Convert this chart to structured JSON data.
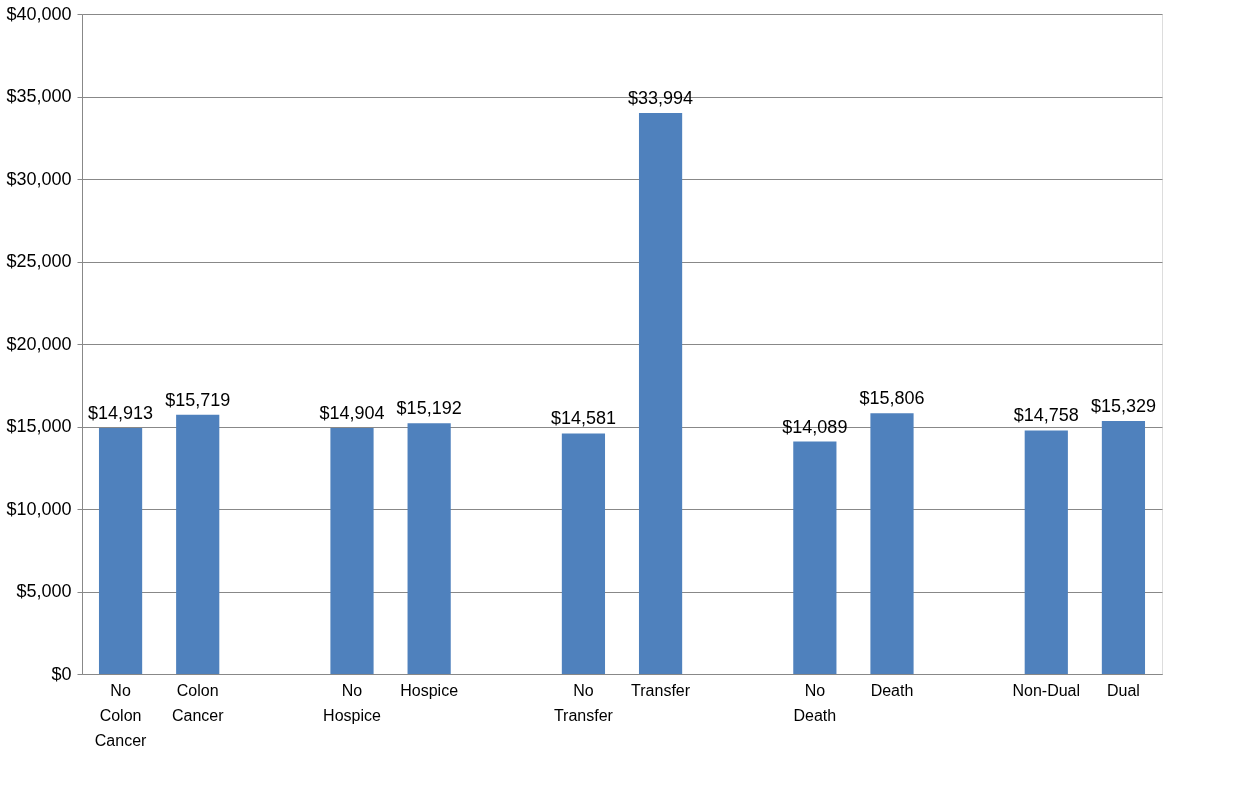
{
  "chart_data": {
    "type": "bar",
    "categories": [
      "No Colon Cancer",
      "Colon Cancer",
      null,
      "No Hospice",
      "Hospice",
      null,
      "No Transfer",
      "Transfer",
      null,
      "No Death",
      "Death",
      null,
      "Non-Dual",
      "Dual"
    ],
    "values": [
      14913,
      15719,
      null,
      14904,
      15192,
      null,
      14581,
      33994,
      null,
      14089,
      15806,
      null,
      14758,
      15329
    ],
    "value_labels": [
      "$14,913",
      "$15,719",
      null,
      "$14,904",
      "$15,192",
      null,
      "$14,581",
      "$33,994",
      null,
      "$14,089",
      "$15,806",
      null,
      "$14,758",
      "$15,329"
    ],
    "color": "#4f81bd",
    "ylim": [
      0,
      40000
    ],
    "yticks": [
      {
        "value": 0,
        "label": "$0"
      },
      {
        "value": 5000,
        "label": "$5,000"
      },
      {
        "value": 10000,
        "label": "$10,000"
      },
      {
        "value": 15000,
        "label": "$15,000"
      },
      {
        "value": 20000,
        "label": "$20,000"
      },
      {
        "value": 25000,
        "label": "$25,000"
      },
      {
        "value": 30000,
        "label": "$30,000"
      },
      {
        "value": 35000,
        "label": "$35,000"
      },
      {
        "value": 40000,
        "label": "$40,000"
      }
    ],
    "grid": "y"
  }
}
